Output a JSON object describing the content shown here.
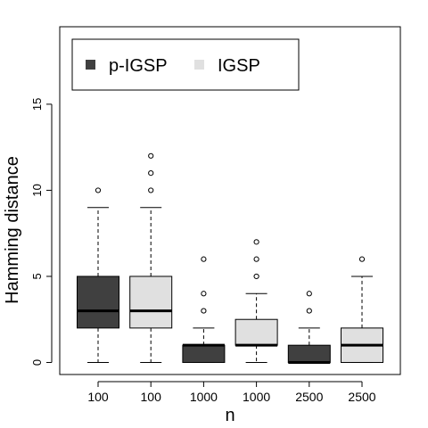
{
  "chart_data": {
    "type": "box",
    "xlabel": "n",
    "ylabel": "Hamming distance",
    "ylim": [
      -0.7,
      19.5
    ],
    "yticks": [
      0,
      5,
      10,
      15
    ],
    "categories": [
      "100",
      "100",
      "1000",
      "1000",
      "2500",
      "2500"
    ],
    "legend": {
      "placement": "top-left",
      "entries": [
        {
          "name": "p-IGSP",
          "color": "#404040"
        },
        {
          "name": "IGSP",
          "color": "#e0e0e0"
        }
      ]
    },
    "boxes": [
      {
        "category": "100",
        "series": "p-IGSP",
        "color": "#404040",
        "min": 0,
        "q1": 2,
        "median": 3,
        "q3": 5,
        "max": 9,
        "outliers": [
          10
        ]
      },
      {
        "category": "100",
        "series": "IGSP",
        "color": "#e0e0e0",
        "min": 0,
        "q1": 2,
        "median": 3,
        "q3": 5,
        "max": 9,
        "outliers": [
          10,
          11,
          12
        ]
      },
      {
        "category": "1000",
        "series": "p-IGSP",
        "color": "#404040",
        "min": 0,
        "q1": 0,
        "median": 1,
        "q3": 1,
        "max": 2,
        "outliers": [
          3,
          4,
          6
        ]
      },
      {
        "category": "1000",
        "series": "IGSP",
        "color": "#e0e0e0",
        "min": 0,
        "q1": 1,
        "median": 1,
        "q3": 2.5,
        "max": 4,
        "outliers": [
          5,
          6,
          7
        ]
      },
      {
        "category": "2500",
        "series": "p-IGSP",
        "color": "#404040",
        "min": 0,
        "q1": 0,
        "median": 0,
        "q3": 1,
        "max": 2,
        "outliers": [
          3,
          4
        ]
      },
      {
        "category": "2500",
        "series": "IGSP",
        "color": "#e0e0e0",
        "min": 0,
        "q1": 0,
        "median": 1,
        "q3": 2,
        "max": 5,
        "outliers": [
          6
        ]
      }
    ]
  }
}
